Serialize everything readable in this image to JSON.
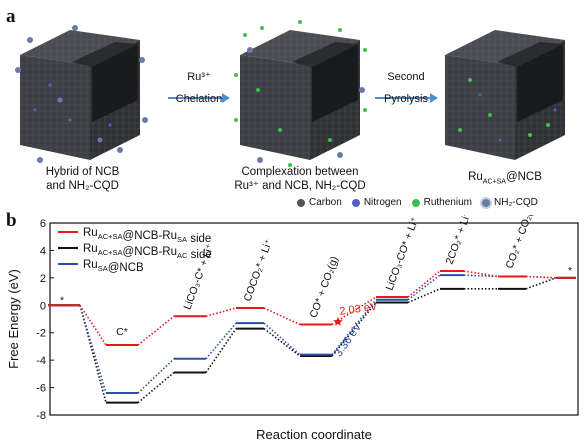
{
  "panel_a": {
    "letter": "a",
    "captions": {
      "left_line1": "Hybrid of NCB",
      "left_line2": "and NH₂-CQD",
      "mid_line1": "Complexation between",
      "mid_line2": "Ru³⁺ and NCB, NH₂-CQD",
      "right_main": "Ru",
      "right_sub": "AC+SA",
      "right_tail": "@NCB"
    },
    "arrows": [
      {
        "top": "Ru³⁺",
        "bottom": "Chelation"
      },
      {
        "top": "Second",
        "bottom": "Pyrolysis"
      }
    ],
    "legend": [
      {
        "label": "Carbon",
        "color": "#555555"
      },
      {
        "label": "Nitrogen",
        "color": "#4f5fbf"
      },
      {
        "label": "Ruthenium",
        "color": "#3fbf4f"
      },
      {
        "label": "NH₂-CQD",
        "color": "#6b7ba8"
      }
    ]
  },
  "panel_b": {
    "letter": "b",
    "colors": {
      "red": "#e41a1c",
      "black": "#111111",
      "blue": "#2a4fa8"
    },
    "legend": [
      {
        "pre": "Ru",
        "sub1": "AC+SA",
        "mid": "@NCB-Ru",
        "sub2": "SA",
        "post": " side",
        "color": "#e41a1c"
      },
      {
        "pre": "Ru",
        "sub1": "AC+SA",
        "mid": "@NCB-Ru",
        "sub2": "AC",
        "post": " side",
        "color": "#111111"
      },
      {
        "pre": "Ru",
        "sub1": "SA",
        "mid": "@NCB",
        "sub2": "",
        "post": "",
        "color": "#2a4fa8"
      }
    ],
    "annotations": {
      "red_barrier": "2.03 eV",
      "blue_barrier": "3.36 eV",
      "start_mark": "*",
      "end_mark": "*"
    }
  },
  "chart_data": {
    "type": "line",
    "xlabel": "Reaction coordinate",
    "ylabel": "Free Energy (eV)",
    "ylim": [
      -8,
      6
    ],
    "yticks": [
      -8,
      -6,
      -4,
      -2,
      0,
      2,
      4,
      6
    ],
    "steps": [
      "*",
      "C*",
      "LiCO₃-C* + Li⁺",
      "COCO₂* + Li⁺",
      "CO* + CO₂(g)",
      "LiCO₃-CO* + Li⁺",
      "2CO₂* + Li⁺",
      "CO₂* + CO₂(g)",
      "*"
    ],
    "series": [
      {
        "name": "Ru(AC+SA)@NCB-Ru(SA) side",
        "color": "#e41a1c",
        "values": [
          0,
          -2.9,
          -0.8,
          -0.2,
          -1.4,
          0.6,
          2.5,
          2.1,
          2.0
        ]
      },
      {
        "name": "Ru(AC+SA)@NCB-Ru(AC) side",
        "color": "#111111",
        "values": [
          0,
          -7.1,
          -4.9,
          -1.7,
          -3.7,
          0.2,
          1.2,
          1.2,
          2.0
        ]
      },
      {
        "name": "Ru(SA)@NCB",
        "color": "#2a4fa8",
        "values": [
          0,
          -6.4,
          -3.9,
          -1.3,
          -3.6,
          0.4,
          2.2,
          2.1,
          2.0
        ]
      }
    ]
  }
}
